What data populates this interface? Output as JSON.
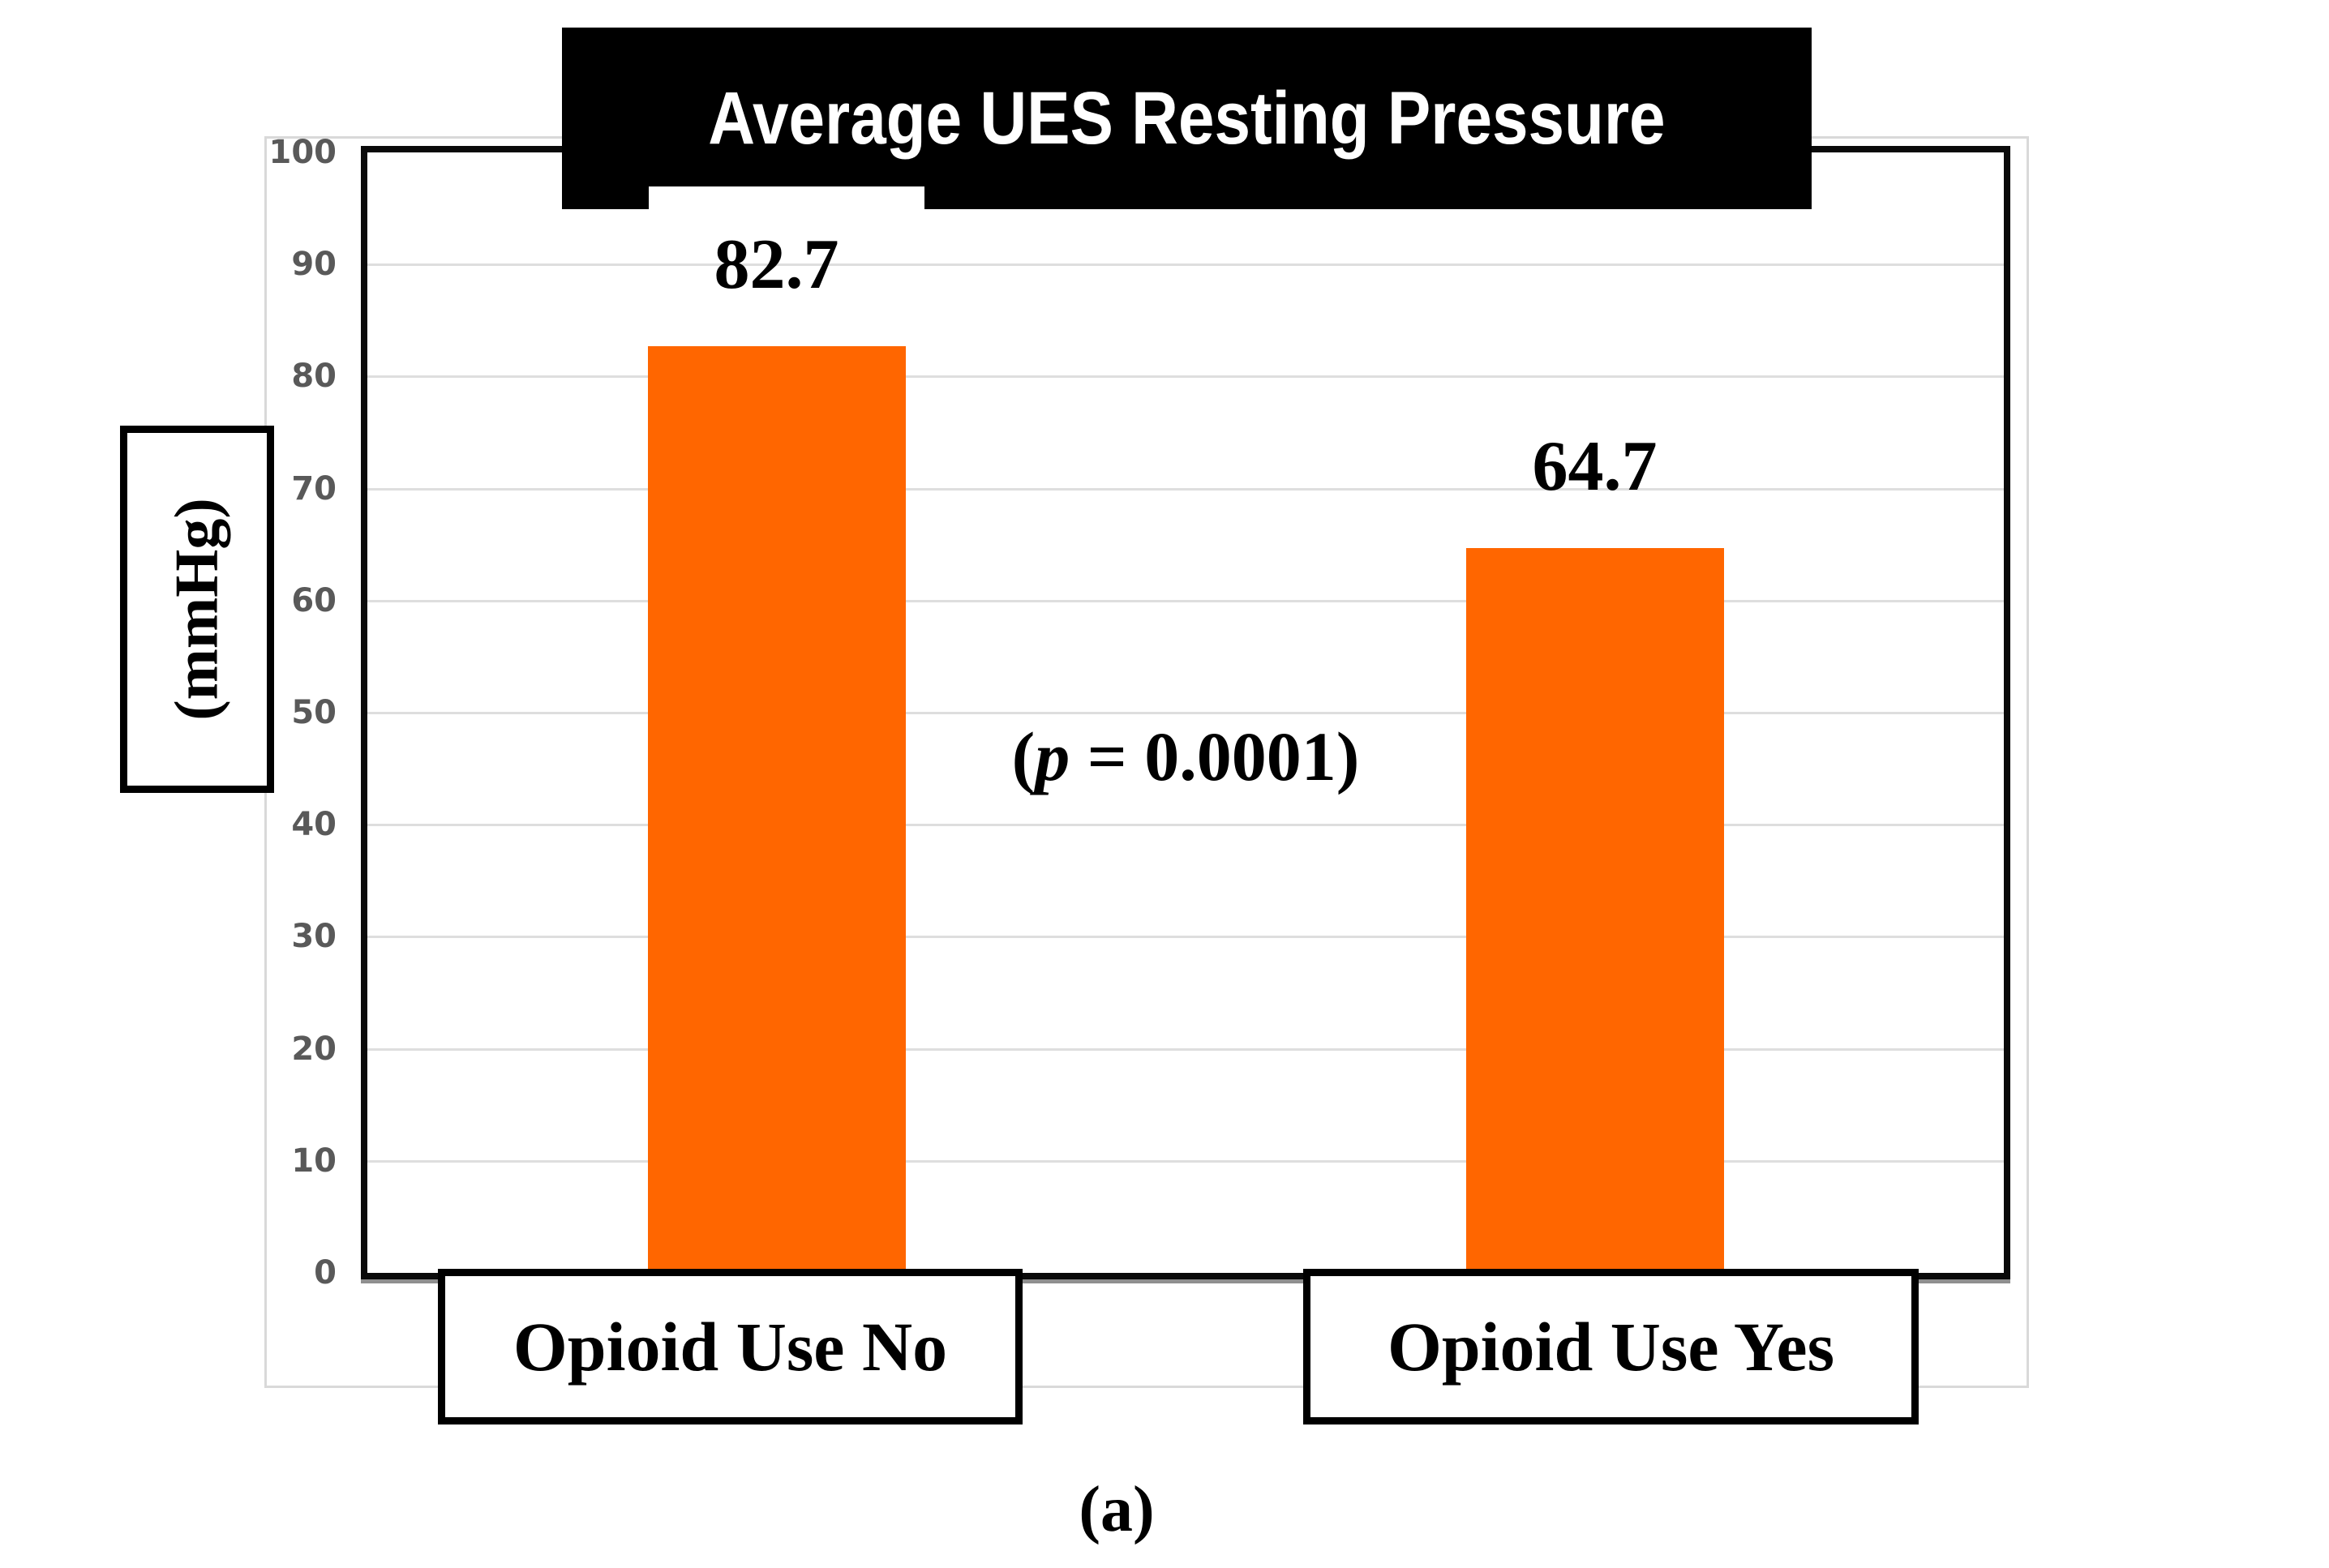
{
  "figure": {
    "title": "Average UES Resting Pressure",
    "caption": "(a)",
    "y_axis_label": "(mmHg)",
    "annotation": {
      "prefix": "(",
      "symbol": "p",
      "rest": " = 0.0001)",
      "full": "(p = 0.0001)"
    }
  },
  "chart_data": {
    "type": "bar",
    "title": "Average UES Resting Pressure",
    "categories": [
      "Opioid Use No",
      "Opioid Use Yes"
    ],
    "values": [
      82.7,
      64.7
    ],
    "value_labels": [
      "82.7",
      "64.7"
    ],
    "xlabel": "",
    "ylabel": "(mmHg)",
    "ylim": [
      0,
      100
    ],
    "ytick_step": 10,
    "ytick_labels": [
      "0",
      "10",
      "20",
      "30",
      "40",
      "50",
      "60",
      "70",
      "80",
      "90",
      "100"
    ],
    "annotation": "(p = 0.0001)",
    "caption": "(a)",
    "grid": true,
    "legend": false,
    "bar_color": "#FF6600",
    "gridline_color": "#DEDEDE",
    "tick_label_color": "#595959",
    "title_bg_color": "#000000",
    "title_text_color": "#FFFFFF"
  }
}
